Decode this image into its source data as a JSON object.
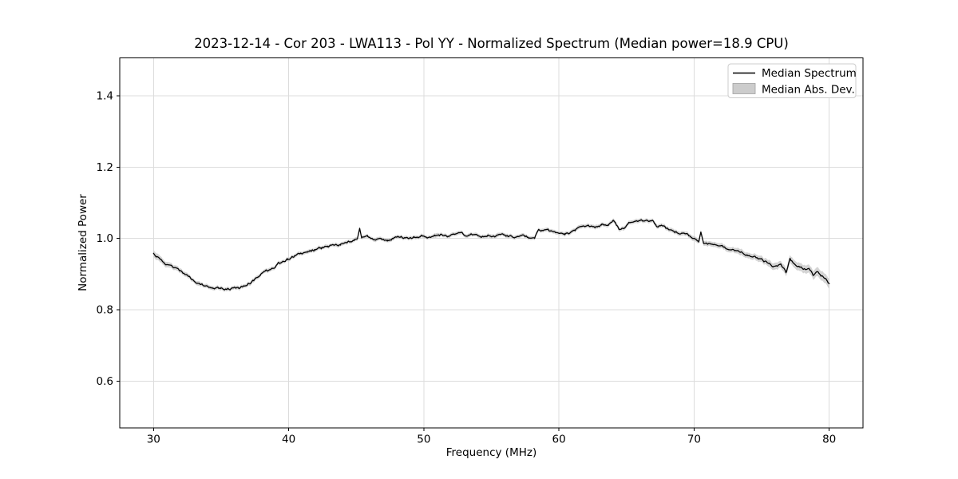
{
  "chart_data": {
    "type": "line",
    "title": "2023-12-14 - Cor 203 - LWA113 - Pol YY - Normalized Spectrum (Median power=18.9 CPU)",
    "xlabel": "Frequency (MHz)",
    "ylabel": "Normalized Power",
    "xlim": [
      27.5,
      82.5
    ],
    "ylim": [
      0.4685,
      1.5065
    ],
    "grid": true,
    "legend_position": "upper right",
    "xticks": {
      "values": [
        30,
        40,
        50,
        60,
        70,
        80
      ],
      "labels": [
        "30",
        "40",
        "50",
        "60",
        "70",
        "80"
      ]
    },
    "yticks": {
      "values": [
        0.6,
        0.8,
        1.0,
        1.2,
        1.4
      ],
      "labels": [
        "0.6",
        "0.8",
        "1.0",
        "1.2",
        "1.4"
      ]
    },
    "legend_entries": [
      {
        "label": "Median Spectrum",
        "type": "line",
        "color": "#000000"
      },
      {
        "label": "Median Abs. Dev.",
        "type": "patch",
        "color": "#cccccc"
      }
    ],
    "series": [
      {
        "name": "Median Spectrum",
        "color": "#000000",
        "x": [
          30,
          30.2,
          30.5,
          31,
          31.5,
          32,
          32.5,
          33,
          33.45,
          33.95,
          34.45,
          34.95,
          35.45,
          35.95,
          36.45,
          36.95,
          37.45,
          37.9,
          38.4,
          38.9,
          39.2,
          39.5,
          39.9,
          40.4,
          40.9,
          41.4,
          41.9,
          42.4,
          42.9,
          43.35,
          43.85,
          44.35,
          44.85,
          45.1,
          45.25,
          45.4,
          45.85,
          46.35,
          46.85,
          47.3,
          47.8,
          48.3,
          48.8,
          49.3,
          49.8,
          50.3,
          50.8,
          51.3,
          51.8,
          52.3,
          52.75,
          53.25,
          53.75,
          54.25,
          54.75,
          55.25,
          55.75,
          56.25,
          56.7,
          57.2,
          57.7,
          58.2,
          58.5,
          59.2,
          59.7,
          60.4,
          60.7,
          61.2,
          61.7,
          62.2,
          62.65,
          63.15,
          63.65,
          64.05,
          64.45,
          64.85,
          65.25,
          65.65,
          66.15,
          66.65,
          67.0,
          67.2,
          67.6,
          68.1,
          68.6,
          69.1,
          69.6,
          70.0,
          70.35,
          70.5,
          70.7,
          71.5,
          72.0,
          72.5,
          73.0,
          73.5,
          74.0,
          74.5,
          75.0,
          75.5,
          75.9,
          76.4,
          76.8,
          77.1,
          77.5,
          78.0,
          78.5,
          78.8,
          79.1,
          79.4,
          79.65,
          79.85,
          80.0
        ],
        "y": [
          0.957,
          0.95,
          0.941,
          0.927,
          0.917,
          0.908,
          0.895,
          0.882,
          0.872,
          0.866,
          0.862,
          0.86,
          0.858,
          0.859,
          0.861,
          0.87,
          0.884,
          0.9,
          0.91,
          0.919,
          0.928,
          0.932,
          0.942,
          0.949,
          0.956,
          0.962,
          0.968,
          0.973,
          0.978,
          0.98,
          0.983,
          0.99,
          0.998,
          1.002,
          1.03,
          1.004,
          1.005,
          0.993,
          1.0,
          0.992,
          1.002,
          1.004,
          0.999,
          1.004,
          1.006,
          1.002,
          1.008,
          1.011,
          1.006,
          1.012,
          1.013,
          1.009,
          1.012,
          1.002,
          1.009,
          1.006,
          1.012,
          1.007,
          1.004,
          1.01,
          1.004,
          1.002,
          1.025,
          1.022,
          1.016,
          1.009,
          1.015,
          1.022,
          1.033,
          1.037,
          1.034,
          1.037,
          1.039,
          1.054,
          1.026,
          1.032,
          1.046,
          1.048,
          1.051,
          1.047,
          1.048,
          1.036,
          1.035,
          1.025,
          1.018,
          1.014,
          1.008,
          1.0,
          0.992,
          1.016,
          0.986,
          0.983,
          0.977,
          0.972,
          0.966,
          0.96,
          0.955,
          0.949,
          0.94,
          0.93,
          0.921,
          0.927,
          0.905,
          0.944,
          0.924,
          0.917,
          0.912,
          0.898,
          0.907,
          0.895,
          0.89,
          0.882,
          0.872
        ]
      },
      {
        "name": "Median Abs. Dev.",
        "color": "#c6c6c6",
        "band_x": [
          30,
          31,
          33,
          45,
          67,
          70,
          72,
          74,
          76,
          78.5,
          80
        ],
        "band_halfwidth": [
          0.009,
          0.007,
          0.005,
          0.0045,
          0.005,
          0.006,
          0.0065,
          0.0075,
          0.009,
          0.011,
          0.013
        ]
      }
    ],
    "render": {
      "samples_per_mhz": 12,
      "noise_amplitude": 0.0028,
      "noise_persistence": 0.55,
      "band_noise_amplitude": 0.001,
      "seed": 20231214
    }
  },
  "colors": {
    "line": "#000000",
    "band": "#c6c6c6",
    "grid": "#dcdcdc",
    "spine": "#000000",
    "background": "#ffffff",
    "legend_border": "#cccccc",
    "legend_patch_border": "#a0a0a0"
  }
}
